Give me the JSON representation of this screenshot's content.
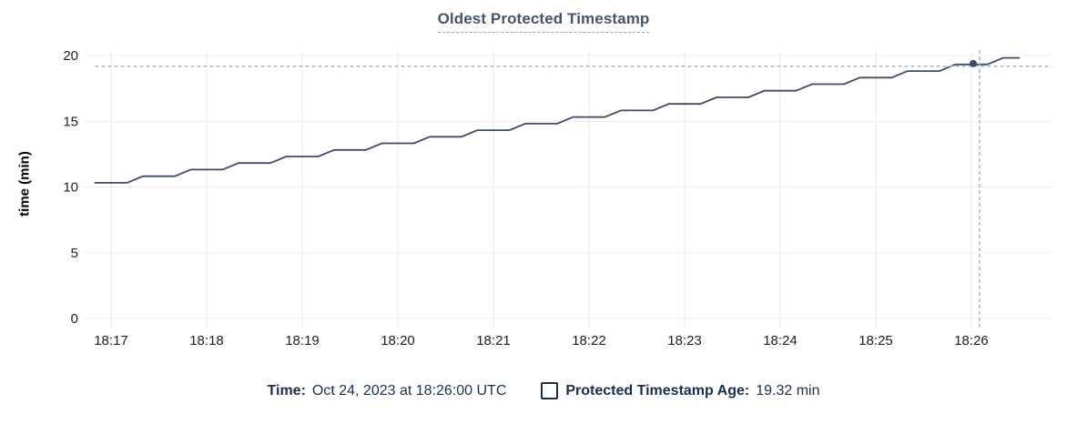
{
  "header": {
    "title": "Oldest Protected Timestamp"
  },
  "y_axis_title": "time (min)",
  "legend": {
    "time_label": "Time:",
    "time_value": "Oct 24, 2023 at 18:26:00 UTC",
    "series_label": "Protected Timestamp Age:",
    "series_value": "19.32 min"
  },
  "colors": {
    "line": "#3e4b64",
    "hover_dot": "#3e4b64",
    "crosshair": "#9fb2c2",
    "grid_horizontal": "#ececec",
    "grid_vertical": "#e8e8e8",
    "tick_text": "#212121",
    "title_text": "#46536d",
    "legend_text": "#16304d"
  },
  "chart_data": {
    "type": "line",
    "title": "Oldest Protected Timestamp",
    "xlabel": "",
    "ylabel": "time (min)",
    "ylim": [
      0,
      20
    ],
    "yticks": [
      0,
      5,
      10,
      15,
      20
    ],
    "xticks": [
      "18:17",
      "18:18",
      "18:19",
      "18:20",
      "18:21",
      "18:22",
      "18:23",
      "18:24",
      "18:25",
      "18:26"
    ],
    "grid": true,
    "legend_position": "bottom",
    "series": [
      {
        "name": "Protected Timestamp Age",
        "unit": "min",
        "start_time": "18:16:50",
        "sample_interval_seconds": 10,
        "values": [
          10.32,
          10.32,
          10.32,
          10.82,
          10.82,
          10.82,
          11.32,
          11.32,
          11.32,
          11.82,
          11.82,
          11.82,
          12.32,
          12.32,
          12.32,
          12.82,
          12.82,
          12.82,
          13.32,
          13.32,
          13.32,
          13.82,
          13.82,
          13.82,
          14.32,
          14.32,
          14.32,
          14.82,
          14.82,
          14.82,
          15.32,
          15.32,
          15.32,
          15.82,
          15.82,
          15.82,
          16.32,
          16.32,
          16.32,
          16.82,
          16.82,
          16.82,
          17.32,
          17.32,
          17.32,
          17.82,
          17.82,
          17.82,
          18.32,
          18.32,
          18.32,
          18.82,
          18.82,
          18.82,
          19.32,
          19.32,
          19.32,
          19.82,
          19.82
        ]
      }
    ],
    "hover": {
      "index": 55,
      "time": "18:26:00",
      "date_label": "Oct 24, 2023 at 18:26:00 UTC",
      "value": 19.32
    }
  }
}
